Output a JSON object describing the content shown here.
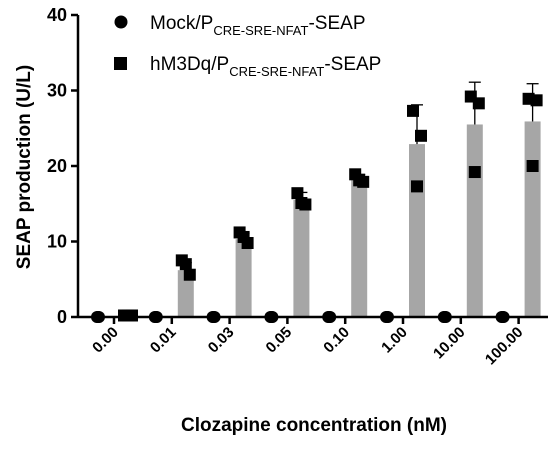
{
  "chart_data": {
    "type": "bar",
    "xlabel": "Clozapine concentration (nM)",
    "ylabel": "SEAP production (U/L)",
    "ylim": [
      0,
      40
    ],
    "yticks": [
      "0",
      "10",
      "20",
      "30",
      "40"
    ],
    "categories": [
      "0.00",
      "0.01",
      "0.03",
      "0.05",
      "0.10",
      "1.00",
      "10.00",
      "100.00"
    ],
    "legend": {
      "position": "top-left",
      "entries": [
        {
          "marker": "circle",
          "main": "Mock/P",
          "sub": "CRE-SRE-NFAT",
          "suffix": "-SEAP"
        },
        {
          "marker": "square",
          "main": "hM3Dq/P",
          "sub": "CRE-SRE-NFAT",
          "suffix": "-SEAP"
        }
      ]
    },
    "colors": {
      "bar": "#a6a6a6",
      "marker": "#000000"
    },
    "series": [
      {
        "marker": "circle",
        "bars": [
          0,
          0,
          0,
          0,
          0,
          0,
          0,
          0
        ],
        "points": [
          [
            0,
            0,
            0
          ],
          [
            0,
            0,
            0
          ],
          [
            0,
            0,
            0
          ],
          [
            0,
            0,
            0
          ],
          [
            0,
            0,
            0
          ],
          [
            0,
            0,
            0
          ],
          [
            0,
            0,
            0
          ],
          [
            0,
            0,
            0
          ]
        ]
      },
      {
        "marker": "square",
        "bars": [
          0.2,
          6.2,
          10.3,
          15.5,
          18.3,
          22.9,
          25.5,
          25.9
        ],
        "error": [
          0.1,
          1.0,
          0.8,
          1.0,
          0.6,
          5.2,
          5.6,
          5.0
        ],
        "points": [
          [
            0.2,
            0.2,
            0.2
          ],
          [
            7.5,
            5.6,
            7.0
          ],
          [
            11.2,
            9.8,
            10.6
          ],
          [
            16.4,
            14.9,
            15.1
          ],
          [
            18.9,
            17.9,
            18.1
          ],
          [
            27.3,
            24.0,
            17.3
          ],
          [
            29.2,
            28.3,
            19.2
          ],
          [
            28.9,
            28.7,
            20.0
          ]
        ]
      }
    ]
  }
}
